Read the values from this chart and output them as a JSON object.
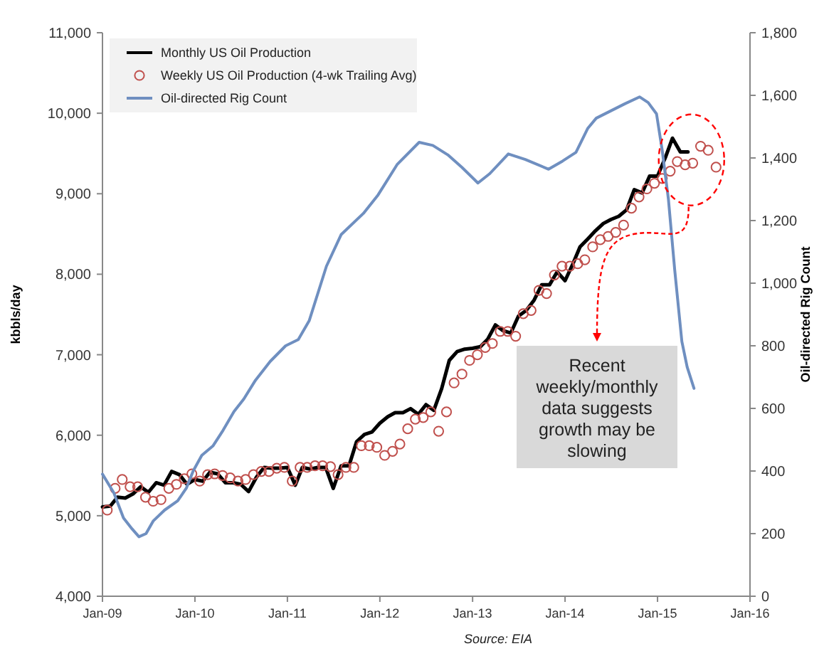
{
  "chart_data": {
    "type": "line",
    "ylabel": "kbbls/day",
    "y2label": "Oil-directed Rig Count",
    "xlim": [
      "2009-01",
      "2016-01"
    ],
    "xticks": [
      {
        "value": "2009-01",
        "label": "Jan-09"
      },
      {
        "value": "2010-01",
        "label": "Jan-10"
      },
      {
        "value": "2011-01",
        "label": "Jan-11"
      },
      {
        "value": "2012-01",
        "label": "Jan-12"
      },
      {
        "value": "2013-01",
        "label": "Jan-13"
      },
      {
        "value": "2014-01",
        "label": "Jan-14"
      },
      {
        "value": "2015-01",
        "label": "Jan-15"
      },
      {
        "value": "2016-01",
        "label": "Jan-16"
      }
    ],
    "ylim": [
      4000,
      11000
    ],
    "yticks": [
      {
        "value": 4000,
        "label": "4,000"
      },
      {
        "value": 5000,
        "label": "5,000"
      },
      {
        "value": 6000,
        "label": "6,000"
      },
      {
        "value": 7000,
        "label": "7,000"
      },
      {
        "value": 8000,
        "label": "8,000"
      },
      {
        "value": 9000,
        "label": "9,000"
      },
      {
        "value": 10000,
        "label": "10,000"
      },
      {
        "value": 11000,
        "label": "11,000"
      }
    ],
    "y2lim": [
      0,
      1800
    ],
    "y2ticks": [
      0,
      200,
      400,
      600,
      800,
      {
        "value": 1000,
        "label": "1,000"
      },
      {
        "value": 1200,
        "label": "1,200"
      },
      {
        "value": 1400,
        "label": "1,400"
      },
      {
        "value": 1600,
        "label": "1,600"
      },
      {
        "value": 1800,
        "label": "1,800"
      }
    ],
    "legend": "top left",
    "series": [
      {
        "name": "Monthly US Oil Production",
        "color": "#000000",
        "marker": "none",
        "x": [
          "2009-01",
          "2009-02",
          "2009-03",
          "2009-04",
          "2009-05",
          "2009-06",
          "2009-07",
          "2009-08",
          "2009-09",
          "2009-10",
          "2009-11",
          "2009-12",
          "2010-01",
          "2010-02",
          "2010-03",
          "2010-04",
          "2010-05",
          "2010-06",
          "2010-07",
          "2010-08",
          "2010-09",
          "2010-10",
          "2010-11",
          "2010-12",
          "2011-01",
          "2011-02",
          "2011-03",
          "2011-04",
          "2011-05",
          "2011-06",
          "2011-07",
          "2011-08",
          "2011-09",
          "2011-10",
          "2011-11",
          "2011-12",
          "2012-01",
          "2012-02",
          "2012-03",
          "2012-04",
          "2012-05",
          "2012-06",
          "2012-07",
          "2012-08",
          "2012-09",
          "2012-10",
          "2012-11",
          "2012-12",
          "2013-01",
          "2013-02",
          "2013-03",
          "2013-04",
          "2013-05",
          "2013-06",
          "2013-07",
          "2013-08",
          "2013-09",
          "2013-10",
          "2013-11",
          "2013-12",
          "2014-01",
          "2014-02",
          "2014-03",
          "2014-04",
          "2014-05",
          "2014-06",
          "2014-07",
          "2014-08",
          "2014-09",
          "2014-10",
          "2014-11",
          "2014-12",
          "2015-01",
          "2015-02",
          "2015-03",
          "2015-04",
          "2015-05"
        ],
        "values": [
          5110,
          5120,
          5230,
          5220,
          5270,
          5360,
          5290,
          5410,
          5380,
          5550,
          5510,
          5390,
          5450,
          5430,
          5540,
          5520,
          5410,
          5410,
          5390,
          5300,
          5480,
          5600,
          5590,
          5590,
          5600,
          5380,
          5600,
          5580,
          5600,
          5600,
          5340,
          5620,
          5620,
          5920,
          6010,
          6040,
          6150,
          6230,
          6280,
          6280,
          6330,
          6260,
          6380,
          6310,
          6580,
          6930,
          7040,
          7070,
          7080,
          7100,
          7190,
          7370,
          7300,
          7270,
          7480,
          7550,
          7680,
          7870,
          7870,
          8030,
          7920,
          8130,
          8340,
          8440,
          8540,
          8630,
          8680,
          8720,
          8800,
          9050,
          9010,
          9220,
          9220,
          9450,
          9690,
          9520,
          9520
        ]
      },
      {
        "name": "Weekly US Oil Production (4-wk Trailing Avg)",
        "type": "scatter",
        "color": "#c0504d",
        "marker": "circle",
        "x": [
          "2009-01-20",
          "2009-02-20",
          "2009-03-20",
          "2009-04-20",
          "2009-05-20",
          "2009-06-20",
          "2009-07-20",
          "2009-08-20",
          "2009-09-20",
          "2009-10-20",
          "2009-11-20",
          "2009-12-20",
          "2010-01-20",
          "2010-02-20",
          "2010-03-20",
          "2010-04-20",
          "2010-05-20",
          "2010-06-20",
          "2010-07-20",
          "2010-08-20",
          "2010-09-20",
          "2010-10-20",
          "2010-11-20",
          "2010-12-20",
          "2011-01-20",
          "2011-02-20",
          "2011-03-20",
          "2011-04-20",
          "2011-05-20",
          "2011-06-20",
          "2011-07-20",
          "2011-08-20",
          "2011-09-20",
          "2011-10-20",
          "2011-11-20",
          "2011-12-20",
          "2012-01-20",
          "2012-02-20",
          "2012-03-20",
          "2012-04-20",
          "2012-05-20",
          "2012-06-20",
          "2012-07-20",
          "2012-08-20",
          "2012-09-20",
          "2012-10-20",
          "2012-11-20",
          "2012-12-20",
          "2013-01-20",
          "2013-02-20",
          "2013-03-20",
          "2013-04-20",
          "2013-05-20",
          "2013-06-20",
          "2013-07-20",
          "2013-08-20",
          "2013-09-20",
          "2013-10-20",
          "2013-11-20",
          "2013-12-20",
          "2014-01-20",
          "2014-02-20",
          "2014-03-20",
          "2014-04-20",
          "2014-05-20",
          "2014-06-20",
          "2014-07-20",
          "2014-08-20",
          "2014-09-20",
          "2014-10-20",
          "2014-11-20",
          "2014-12-20",
          "2015-01-20",
          "2015-02-20",
          "2015-03-20",
          "2015-04-20",
          "2015-05-20",
          "2015-06-20",
          "2015-07-20",
          "2015-08-20"
        ],
        "values": [
          5070,
          5340,
          5450,
          5360,
          5360,
          5230,
          5180,
          5200,
          5340,
          5390,
          5460,
          5520,
          5430,
          5510,
          5520,
          5500,
          5470,
          5430,
          5450,
          5510,
          5550,
          5550,
          5590,
          5600,
          5430,
          5600,
          5600,
          5620,
          5620,
          5610,
          5510,
          5600,
          5600,
          5870,
          5870,
          5850,
          5750,
          5800,
          5890,
          6080,
          6200,
          6220,
          6290,
          6050,
          6290,
          6650,
          6760,
          6930,
          7000,
          7090,
          7140,
          7290,
          7290,
          7230,
          7510,
          7550,
          7800,
          7760,
          7990,
          8100,
          8100,
          8130,
          8180,
          8340,
          8430,
          8470,
          8520,
          8610,
          8820,
          8960,
          9060,
          9130,
          9190,
          9280,
          9400,
          9360,
          9380,
          9590,
          9540,
          9330
        ]
      },
      {
        "name": "Oil-directed Rig Count",
        "type": "line",
        "axis": "y2",
        "color": "#6f8fc0",
        "marker": "none",
        "x": [
          "2009-01-01",
          "2009-02-15",
          "2009-03-25",
          "2009-04-28",
          "2009-05-25",
          "2009-06-22",
          "2009-07-20",
          "2009-09-03",
          "2009-10-25",
          "2009-11-28",
          "2009-12-25",
          "2010-01-28",
          "2010-03-13",
          "2010-04-22",
          "2010-06-04",
          "2010-07-13",
          "2010-08-28",
          "2010-10-25",
          "2010-12-25",
          "2011-02-13",
          "2011-03-28",
          "2011-06-04",
          "2011-08-01",
          "2011-10-28",
          "2011-12-25",
          "2012-03-10",
          "2012-06-04",
          "2012-07-28",
          "2012-09-25",
          "2012-11-20",
          "2013-01-22",
          "2013-03-10",
          "2013-05-22",
          "2013-07-28",
          "2013-10-28",
          "2013-12-22",
          "2014-02-13",
          "2014-04-01",
          "2014-05-04",
          "2014-08-25",
          "2014-10-22",
          "2014-11-25",
          "2014-12-28",
          "2015-01-19",
          "2015-02-13",
          "2015-03-10",
          "2015-04-07",
          "2015-04-28",
          "2015-05-25"
        ],
        "values": [
          390,
          330,
          250,
          215,
          190,
          200,
          240,
          275,
          305,
          345,
          400,
          450,
          480,
          530,
          590,
          630,
          690,
          750,
          800,
          820,
          880,
          1054,
          1155,
          1223,
          1282,
          1380,
          1450,
          1440,
          1410,
          1370,
          1320,
          1350,
          1413,
          1395,
          1364,
          1390,
          1418,
          1495,
          1527,
          1573,
          1595,
          1577,
          1541,
          1427,
          1268,
          1041,
          814,
          732,
          664
        ]
      }
    ],
    "annotations": [
      "Recent weekly/monthly data suggests growth may be slowing",
      "Source: EIA"
    ]
  }
}
